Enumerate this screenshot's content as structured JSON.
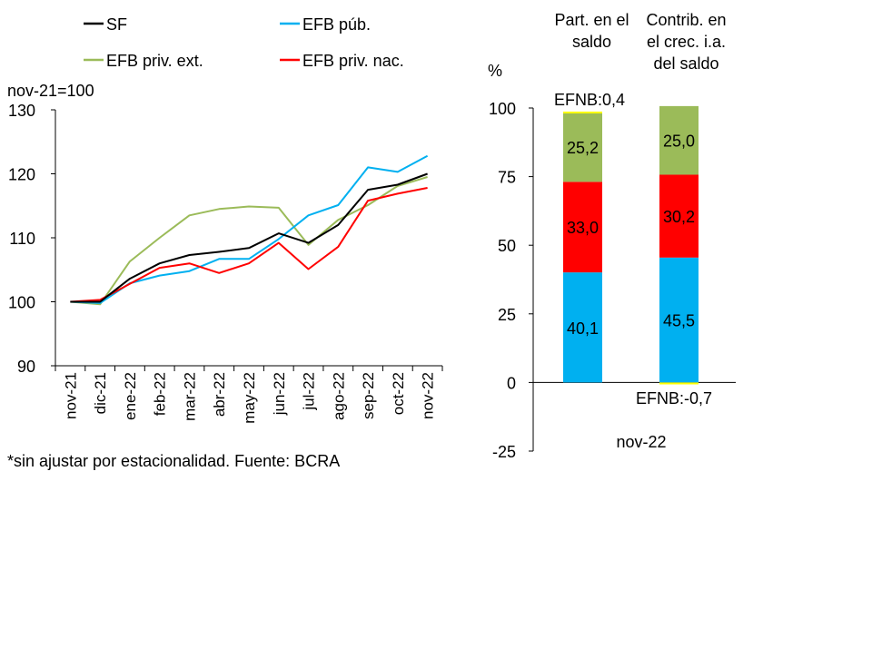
{
  "chart_data": [
    {
      "type": "line",
      "ylabel": "nov-21=100",
      "ylim": [
        90,
        130
      ],
      "yticks": [
        90,
        100,
        110,
        120,
        130
      ],
      "grid": false,
      "legend_position": "top",
      "categories": [
        "nov-21",
        "dic-21",
        "ene-22",
        "feb-22",
        "mar-22",
        "abr-22",
        "may-22",
        "jun-22",
        "jul-22",
        "ago-22",
        "sep-22",
        "oct-22",
        "nov-22"
      ],
      "series": [
        {
          "name": "SF",
          "color": "#000000",
          "values": [
            100,
            100,
            103.6,
            106,
            107.3,
            107.8,
            108.4,
            110.7,
            109.2,
            112,
            117.5,
            118.3,
            120
          ]
        },
        {
          "name": "EFB púb.",
          "color": "#00B0F0",
          "values": [
            100,
            99.8,
            102.9,
            104.1,
            104.8,
            106.7,
            106.7,
            109.8,
            113.5,
            115.1,
            121,
            120.3,
            122.8
          ]
        },
        {
          "name": "EFB priv. ext.",
          "color": "#9BBB59",
          "values": [
            100,
            99.6,
            106.3,
            110,
            113.5,
            114.5,
            114.9,
            114.7,
            108.9,
            112.8,
            115.1,
            118.1,
            119.5
          ]
        },
        {
          "name": "EFB priv. nac.",
          "color": "#FF0000",
          "values": [
            100,
            100.3,
            102.8,
            105.3,
            106,
            104.5,
            106,
            109.2,
            105.1,
            108.6,
            115.8,
            116.9,
            117.8
          ]
        }
      ],
      "footnote": "*sin ajustar por estacionalidad. Fuente: BCRA"
    },
    {
      "type": "bar",
      "stacked": true,
      "ylabel": "%",
      "ylim": [
        -25,
        100
      ],
      "yticks": [
        -25,
        0,
        25,
        50,
        75,
        100
      ],
      "xlabel": "nov-22",
      "categories": [
        "Part. en el saldo",
        "Contrib. en el crec. i.a. del saldo"
      ],
      "series": [
        {
          "name": "EFB púb.",
          "color": "#00B0F0",
          "values": [
            40.1,
            45.5
          ],
          "labels": [
            "40,1",
            "45,5"
          ]
        },
        {
          "name": "EFB priv. nac.",
          "color": "#FF0000",
          "values": [
            33.0,
            30.2
          ],
          "labels": [
            "33,0",
            "30,2"
          ]
        },
        {
          "name": "EFB priv. ext.",
          "color": "#9BBB59",
          "values": [
            25.2,
            25.0
          ],
          "labels": [
            "25,2",
            "25,0"
          ]
        },
        {
          "name": "EFNB",
          "color": "#FFFF00",
          "values": [
            0.4,
            -0.7
          ],
          "labels": [
            "EFNB:0,4",
            "EFNB:-0,7"
          ]
        }
      ]
    }
  ]
}
